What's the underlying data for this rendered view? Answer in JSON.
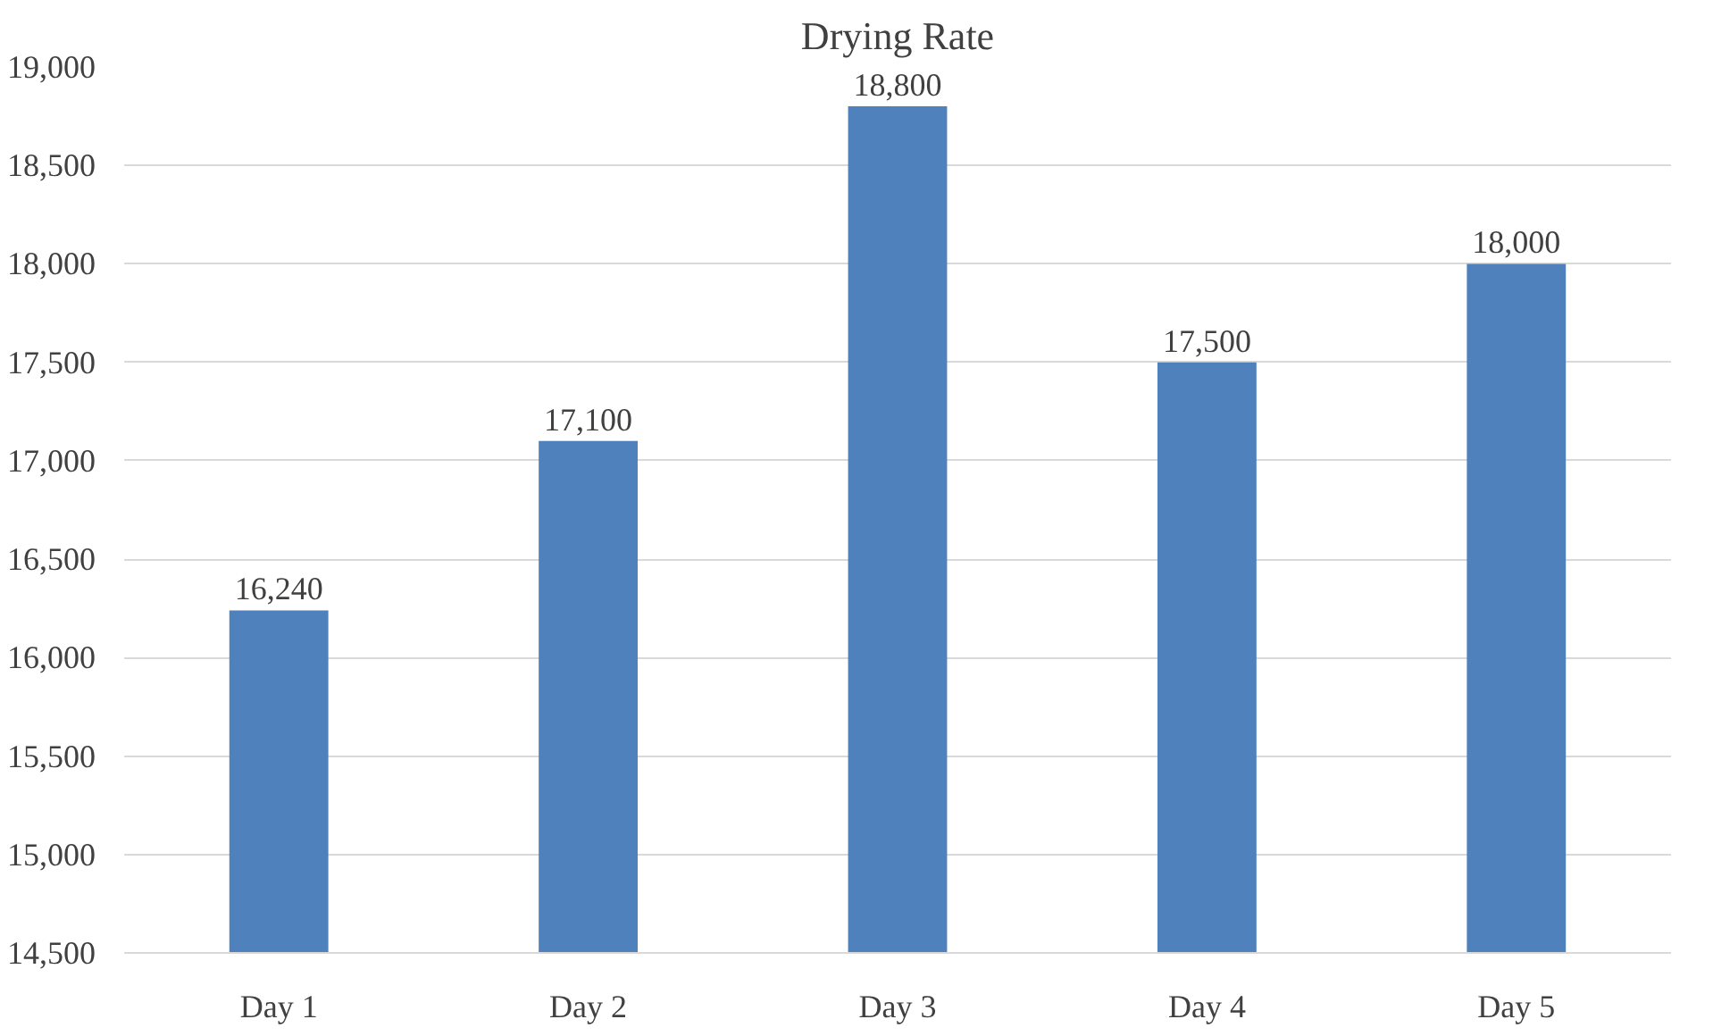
{
  "chart_data": {
    "type": "bar",
    "title": "Drying Rate",
    "categories": [
      "Day 1",
      "Day 2",
      "Day 3",
      "Day 4",
      "Day 5"
    ],
    "values": [
      16240,
      17100,
      18800,
      17500,
      18000
    ],
    "color": "#4f81bd",
    "ylim": [
      14500,
      19000
    ],
    "yticks": [
      {
        "value": 14500,
        "label": "14,500"
      },
      {
        "value": 15000,
        "label": "15,000"
      },
      {
        "value": 15500,
        "label": "15,500"
      },
      {
        "value": 16000,
        "label": "16,000"
      },
      {
        "value": 16500,
        "label": "16,500"
      },
      {
        "value": 17000,
        "label": "17,000"
      },
      {
        "value": 17500,
        "label": "17,500"
      },
      {
        "value": 18000,
        "label": "18,000"
      },
      {
        "value": 18500,
        "label": "18,500"
      },
      {
        "value": 19000,
        "label": "19,000"
      }
    ],
    "value_labels": [
      "16,240",
      "17,100",
      "18,800",
      "17,500",
      "18,000"
    ],
    "grid": "y"
  }
}
